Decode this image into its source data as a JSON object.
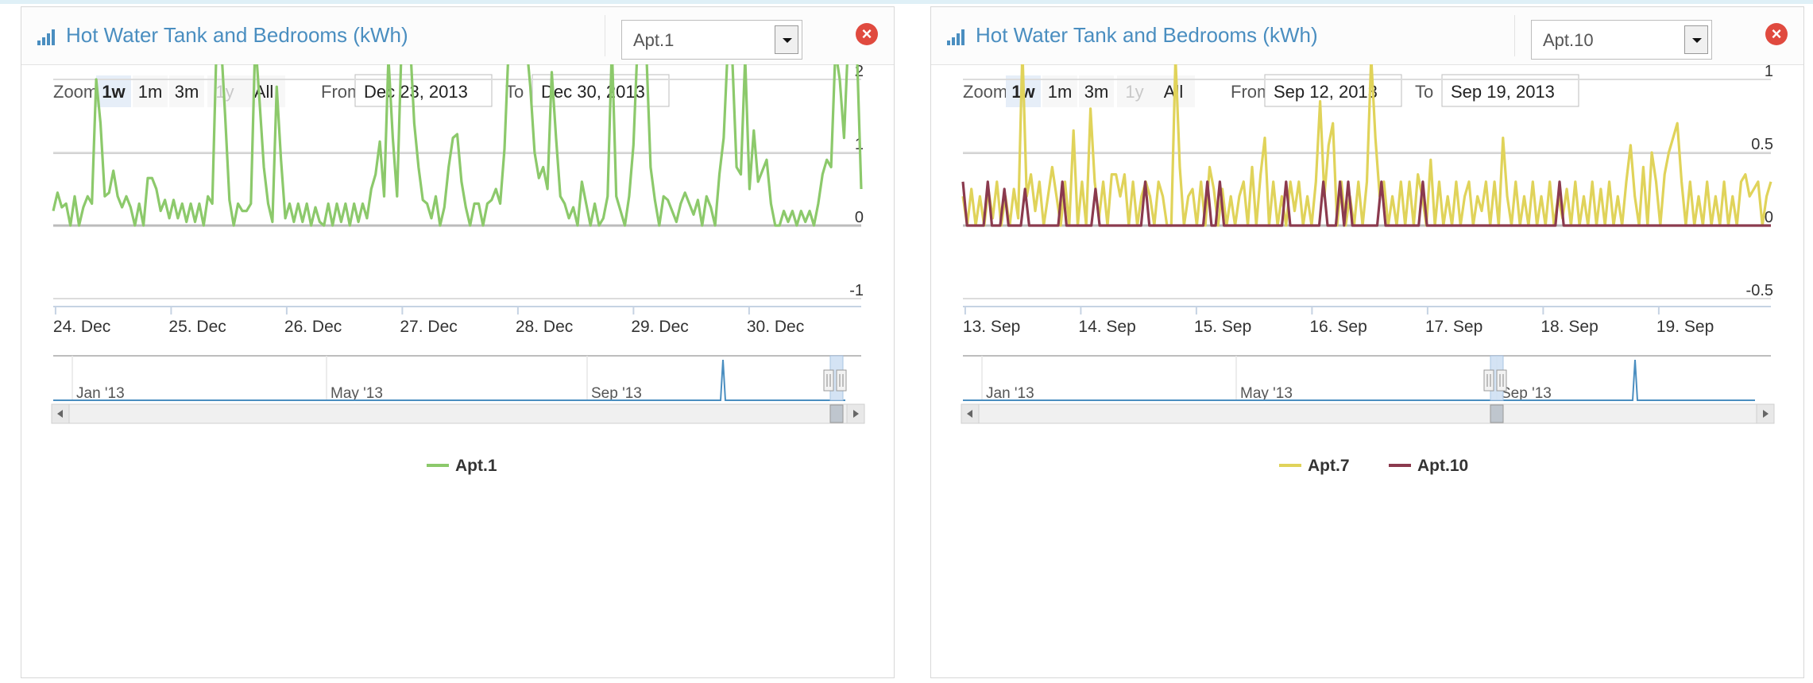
{
  "panels": [
    {
      "title": "Hot Water Tank and Bedrooms (kWh)",
      "selected_option": "Apt.1",
      "zoom": {
        "label": "Zoom",
        "buttons": [
          "1w",
          "1m",
          "3m",
          "1y",
          "All"
        ],
        "active": "1w",
        "disabled": [
          "1y"
        ]
      },
      "range": {
        "from_label": "From",
        "from": "Dec 23, 2013",
        "to_label": "To",
        "to": "Dec 30, 2013"
      },
      "navigator_labels": [
        "Jan '13",
        "May '13",
        "Sep '13"
      ],
      "colors": {
        "accent": "#4a8ec0",
        "close": "#e04a3f"
      },
      "chart_data": {
        "type": "line",
        "x_ticks": [
          "24. Dec",
          "25. Dec",
          "26. Dec",
          "27. Dec",
          "28. Dec",
          "29. Dec",
          "30. Dec"
        ],
        "x_range": [
          -0.02,
          6.97
        ],
        "y_ticks": [
          "-1",
          "0",
          "1",
          "2"
        ],
        "y_tick_values": [
          -1,
          0,
          1,
          2
        ],
        "ylim": [
          -1,
          3
        ],
        "grid": true,
        "legend": "bottom-center",
        "series": [
          {
            "name": "Apt.1",
            "color": "#8cc96b",
            "values": [
              0.2,
              0.45,
              0.25,
              0.3,
              0.0,
              0.4,
              0.0,
              0.25,
              0.4,
              0.3,
              2.0,
              1.4,
              0.4,
              0.45,
              0.75,
              0.4,
              0.25,
              0.4,
              0.25,
              0.0,
              0.3,
              0.0,
              0.65,
              0.65,
              0.5,
              0.2,
              0.35,
              0.1,
              0.35,
              0.1,
              0.3,
              0.05,
              0.3,
              0.05,
              0.3,
              0.0,
              0.4,
              0.3,
              2.5,
              2.55,
              1.5,
              0.35,
              0.0,
              0.3,
              0.2,
              0.2,
              0.3,
              2.55,
              1.7,
              0.8,
              0.3,
              0.05,
              1.9,
              0.9,
              0.1,
              0.3,
              0.05,
              0.3,
              0.05,
              0.3,
              0.0,
              0.25,
              0.05,
              0.0,
              0.3,
              0.0,
              0.3,
              0.05,
              0.3,
              0.0,
              0.3,
              0.05,
              0.3,
              0.1,
              0.5,
              0.7,
              1.15,
              0.4,
              2.3,
              1.2,
              0.4,
              2.4,
              2.6,
              2.55,
              1.4,
              0.8,
              0.35,
              0.3,
              0.1,
              0.4,
              0.0,
              0.25,
              0.8,
              1.2,
              1.25,
              0.6,
              0.25,
              0.0,
              0.3,
              0.3,
              0.0,
              0.3,
              0.35,
              0.5,
              0.3,
              1.05,
              2.5,
              2.6,
              2.55,
              2.6,
              2.55,
              1.9,
              1.0,
              0.65,
              0.8,
              0.5,
              2.1,
              1.2,
              0.4,
              0.3,
              0.1,
              0.25,
              0.0,
              0.6,
              0.3,
              0.0,
              0.3,
              0.0,
              0.1,
              0.4,
              2.45,
              0.4,
              0.2,
              0.0,
              0.4,
              1.1,
              2.55,
              2.55,
              2.4,
              0.8,
              0.35,
              0.0,
              0.4,
              0.35,
              0.2,
              0.05,
              0.3,
              0.45,
              0.3,
              0.15,
              0.35,
              0.0,
              0.4,
              0.25,
              0.0,
              0.7,
              1.2,
              2.5,
              2.3,
              0.8,
              0.7,
              2.3,
              0.5,
              1.3,
              0.6,
              0.75,
              0.9,
              0.3,
              0.0,
              0.0,
              0.2,
              0.05,
              0.2,
              0.0,
              0.2,
              0.05,
              0.2,
              0.0,
              0.3,
              0.7,
              0.9,
              0.8,
              2.4,
              2.0,
              1.2,
              2.6,
              2.6,
              2.4,
              0.5
            ]
          }
        ]
      }
    },
    {
      "title": "Hot Water Tank and Bedrooms (kWh)",
      "selected_option": "Apt.10",
      "zoom": {
        "label": "Zoom",
        "buttons": [
          "1w",
          "1m",
          "3m",
          "1y",
          "All"
        ],
        "active": "1w",
        "disabled": [
          "1y"
        ]
      },
      "range": {
        "from_label": "From",
        "from": "Sep 12, 2013",
        "to_label": "To",
        "to": "Sep 19, 2013"
      },
      "navigator_labels": [
        "Jan '13",
        "May '13",
        "Sep '13"
      ],
      "colors": {
        "accent": "#4a8ec0",
        "close": "#e04a3f"
      },
      "chart_data": {
        "type": "line",
        "x_ticks": [
          "13. Sep",
          "14. Sep",
          "15. Sep",
          "16. Sep",
          "17. Sep",
          "18. Sep",
          "19. Sep"
        ],
        "x_range": [
          -0.02,
          6.97
        ],
        "y_ticks": [
          "-0.5",
          "0",
          "0.5",
          "1"
        ],
        "y_tick_values": [
          -0.5,
          0,
          0.5,
          1
        ],
        "ylim": [
          -0.5,
          1.5
        ],
        "grid": true,
        "legend": "bottom-center",
        "series": [
          {
            "name": "Apt.7",
            "color": "#e0d35a",
            "values": [
              0.2,
              0.0,
              0.25,
              0.0,
              0.2,
              0.0,
              0.25,
              0.05,
              0.3,
              0.0,
              0.2,
              0.0,
              0.25,
              0.05,
              1.2,
              0.2,
              0.35,
              0.1,
              0.3,
              0.0,
              0.2,
              0.4,
              0.2,
              0.0,
              0.3,
              0.0,
              0.65,
              0.0,
              0.3,
              0.0,
              0.8,
              0.3,
              0.05,
              0.3,
              0.0,
              0.35,
              0.35,
              0.2,
              0.35,
              0.0,
              0.3,
              0.0,
              0.2,
              0.3,
              0.2,
              0.0,
              0.3,
              0.2,
              0.0,
              0.0,
              1.15,
              0.4,
              0.0,
              0.2,
              0.25,
              0.0,
              0.3,
              0.0,
              0.4,
              0.25,
              0.0,
              0.25,
              0.0,
              0.2,
              0.0,
              0.2,
              0.3,
              0.0,
              0.4,
              0.0,
              0.35,
              0.6,
              0.0,
              0.3,
              0.0,
              0.2,
              0.0,
              0.3,
              0.1,
              0.3,
              0.0,
              0.2,
              0.0,
              0.3,
              0.85,
              0.2,
              0.55,
              0.7,
              0.0,
              0.3,
              0.0,
              0.2,
              0.0,
              0.3,
              0.0,
              0.3,
              1.15,
              0.6,
              0.2,
              0.3,
              0.0,
              0.2,
              0.0,
              0.3,
              0.0,
              0.3,
              0.0,
              0.35,
              0.2,
              0.0,
              0.45,
              0.0,
              0.3,
              0.0,
              0.2,
              0.0,
              0.3,
              0.0,
              0.2,
              0.3,
              0.0,
              0.2,
              0.1,
              0.3,
              0.0,
              0.3,
              0.0,
              0.6,
              0.2,
              0.0,
              0.3,
              0.0,
              0.2,
              0.0,
              0.3,
              0.0,
              0.2,
              0.0,
              0.3,
              0.0,
              0.2,
              0.05,
              0.25,
              0.0,
              0.3,
              0.0,
              0.2,
              0.0,
              0.3,
              0.0,
              0.25,
              0.0,
              0.3,
              0.0,
              0.2,
              0.0,
              0.3,
              0.55,
              0.2,
              0.0,
              0.4,
              0.0,
              0.5,
              0.3,
              0.0,
              0.35,
              0.5,
              0.6,
              0.7,
              0.3,
              0.0,
              0.3,
              0.0,
              0.2,
              0.0,
              0.3,
              0.0,
              0.2,
              0.0,
              0.3,
              0.0,
              0.2,
              0.0,
              0.3,
              0.35,
              0.2,
              0.25,
              0.3,
              0.0,
              0.2,
              0.3
            ]
          },
          {
            "name": "Apt.10",
            "color": "#8b3a4e",
            "values": [
              0.3,
              0.0,
              0.0,
              0.0,
              0.0,
              0.0,
              0.3,
              0.0,
              0.0,
              0.0,
              0.25,
              0.0,
              0.0,
              0.0,
              0.0,
              0.25,
              0.0,
              0.0,
              0.0,
              0.0,
              0.0,
              0.0,
              0.0,
              0.0,
              0.3,
              0.0,
              0.0,
              0.0,
              0.0,
              0.0,
              0.0,
              0.0,
              0.25,
              0.0,
              0.0,
              0.0,
              0.0,
              0.0,
              0.0,
              0.0,
              0.0,
              0.0,
              0.0,
              0.0,
              0.3,
              0.0,
              0.0,
              0.0,
              0.0,
              0.0,
              0.0,
              0.0,
              0.0,
              0.0,
              0.0,
              0.0,
              0.0,
              0.0,
              0.0,
              0.3,
              0.0,
              0.0,
              0.3,
              0.0,
              0.0,
              0.0,
              0.0,
              0.0,
              0.0,
              0.0,
              0.0,
              0.0,
              0.0,
              0.0,
              0.0,
              0.0,
              0.0,
              0.0,
              0.3,
              0.0,
              0.0,
              0.0,
              0.0,
              0.0,
              0.0,
              0.0,
              0.0,
              0.3,
              0.0,
              0.0,
              0.0,
              0.3,
              0.0,
              0.3,
              0.0,
              0.0,
              0.0,
              0.0,
              0.0,
              0.0,
              0.0,
              0.3,
              0.0,
              0.0,
              0.0,
              0.0,
              0.0,
              0.0,
              0.0,
              0.0,
              0.0,
              0.3,
              0.0,
              0.0,
              0.0,
              0.0,
              0.0,
              0.0,
              0.0,
              0.0,
              0.0,
              0.0,
              0.0,
              0.0,
              0.0,
              0.0,
              0.0,
              0.0,
              0.0,
              0.0,
              0.0,
              0.0,
              0.0,
              0.0,
              0.0,
              0.0,
              0.0,
              0.0,
              0.0,
              0.0,
              0.0,
              0.0,
              0.0,
              0.0,
              0.3,
              0.0,
              0.0,
              0.0,
              0.0,
              0.0,
              0.0,
              0.0,
              0.0,
              0.0,
              0.0,
              0.0,
              0.0,
              0.0,
              0.0,
              0.0,
              0.0,
              0.0,
              0.0,
              0.0,
              0.0,
              0.0,
              0.0,
              0.0,
              0.0,
              0.0,
              0.0,
              0.0,
              0.0,
              0.0,
              0.0,
              0.0,
              0.0,
              0.0,
              0.0,
              0.0,
              0.0,
              0.0,
              0.0,
              0.0,
              0.0,
              0.0,
              0.0,
              0.0,
              0.0,
              0.0,
              0.0,
              0.0,
              0.0,
              0.0,
              0.0,
              0.0
            ]
          }
        ]
      }
    }
  ]
}
